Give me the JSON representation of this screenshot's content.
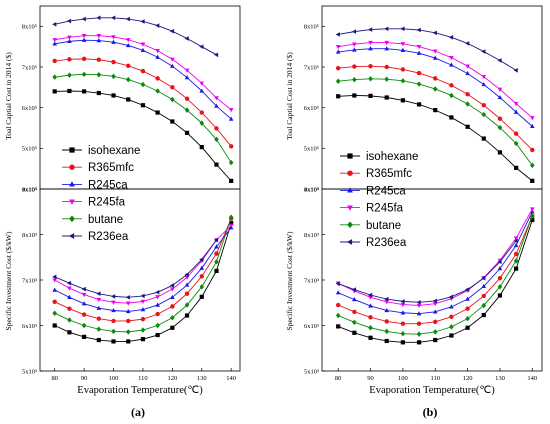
{
  "panels": [
    {
      "label": "(a)",
      "top_ylabel": "Toal Captial Cost in 2014 ($)",
      "bottom_ylabel": "Specific Investment Cost ($/kW)",
      "xlabel": "Evaporation Temperature(℃)"
    },
    {
      "label": "(b)",
      "top_ylabel": "Toal Captial Cost in 2014 ($)",
      "bottom_ylabel": "Specific Investment Cost ($/kW)",
      "xlabel": "Evaporation Temperature(℃)"
    }
  ],
  "legend": [
    {
      "name": "isohexane",
      "color": "#000000",
      "marker": "square"
    },
    {
      "name": "R365mfc",
      "color": "#e8141a",
      "marker": "circle"
    },
    {
      "name": "R245ca",
      "color": "#1a1ae8",
      "marker": "triangle-up"
    },
    {
      "name": "R245fa",
      "color": "#ee00ee",
      "marker": "triangle-down"
    },
    {
      "name": "butane",
      "color": "#0a8a0a",
      "marker": "diamond"
    },
    {
      "name": "R236ea",
      "color": "#1a1a80",
      "marker": "triangle-left"
    }
  ],
  "chart_data": [
    {
      "type": "line",
      "panel": "(a) top",
      "ylabel": "Toal Captial Cost in 2014 ($)",
      "ylim": [
        400000,
        850000
      ],
      "yticks": [
        400000,
        500000,
        600000,
        700000,
        800000
      ],
      "ytick_labels": [
        "4x10⁵",
        "5x10⁵",
        "6x10⁵",
        "7x10⁵",
        "8x10⁵"
      ],
      "xlim": [
        75,
        143
      ],
      "series": [
        {
          "name": "isohexane",
          "x": [
            80,
            85,
            90,
            95,
            100,
            105,
            110,
            115,
            120,
            125,
            130,
            135,
            140
          ],
          "values": [
            640000,
            641000,
            640000,
            636000,
            630000,
            620000,
            606000,
            588000,
            566000,
            538000,
            503000,
            460000,
            420000
          ]
        },
        {
          "name": "R365mfc",
          "x": [
            80,
            85,
            90,
            95,
            100,
            105,
            110,
            115,
            120,
            125,
            130,
            135,
            140
          ],
          "values": [
            715000,
            719000,
            720000,
            718000,
            712000,
            703000,
            690000,
            672000,
            650000,
            622000,
            588000,
            549000,
            505000
          ]
        },
        {
          "name": "R245ca",
          "x": [
            80,
            85,
            90,
            95,
            100,
            105,
            110,
            115,
            120,
            125,
            130,
            135,
            140
          ],
          "values": [
            757000,
            763000,
            766000,
            765000,
            761000,
            753000,
            741000,
            724000,
            702000,
            674000,
            641000,
            604000,
            572000
          ]
        },
        {
          "name": "R245fa",
          "x": [
            80,
            85,
            90,
            95,
            100,
            105,
            110,
            115,
            120,
            125,
            130,
            135,
            140
          ],
          "values": [
            767000,
            773000,
            777000,
            777000,
            774000,
            767000,
            756000,
            740000,
            719000,
            692000,
            660000,
            624000,
            595000
          ]
        },
        {
          "name": "butane",
          "x": [
            80,
            85,
            90,
            95,
            100,
            105,
            110,
            115,
            120,
            125,
            130,
            135,
            140
          ],
          "values": [
            675000,
            680000,
            682000,
            681000,
            677000,
            669000,
            657000,
            641000,
            620000,
            594000,
            562000,
            522000,
            465000
          ]
        },
        {
          "name": "R236ea",
          "x": [
            80,
            85,
            90,
            95,
            100,
            105,
            110,
            115,
            120,
            125,
            130,
            135
          ],
          "values": [
            805000,
            813000,
            818000,
            821000,
            821000,
            818000,
            812000,
            802000,
            788000,
            770000,
            750000,
            730000
          ]
        }
      ]
    },
    {
      "type": "line",
      "panel": "(a) bottom",
      "ylabel": "Specific Investment Cost ($/kW)",
      "ylim": [
        5000,
        9000
      ],
      "yticks": [
        5000,
        6000,
        7000,
        8000,
        9000
      ],
      "ytick_labels": [
        "5x10³",
        "6x10³",
        "7x10³",
        "8x10³",
        "9x10³"
      ],
      "xlim": [
        75,
        143
      ],
      "xticks": [
        80,
        90,
        100,
        110,
        120,
        130,
        140
      ],
      "xlabel": "Evaporation Temperature(℃)",
      "series": [
        {
          "name": "isohexane",
          "x": [
            80,
            85,
            90,
            95,
            100,
            105,
            110,
            115,
            120,
            125,
            130,
            135,
            140
          ],
          "values": [
            6000,
            5850,
            5750,
            5680,
            5650,
            5650,
            5700,
            5790,
            5950,
            6220,
            6630,
            7200,
            8250
          ]
        },
        {
          "name": "R365mfc",
          "x": [
            80,
            85,
            90,
            95,
            100,
            105,
            110,
            115,
            120,
            125,
            130,
            135,
            140
          ],
          "values": [
            6520,
            6370,
            6240,
            6150,
            6100,
            6100,
            6140,
            6250,
            6420,
            6700,
            7080,
            7580,
            8350
          ]
        },
        {
          "name": "R245ca",
          "x": [
            80,
            85,
            90,
            95,
            100,
            105,
            110,
            115,
            120,
            125,
            130,
            135,
            140
          ],
          "values": [
            6780,
            6620,
            6480,
            6380,
            6330,
            6310,
            6350,
            6450,
            6620,
            6890,
            7260,
            7730,
            8150
          ]
        },
        {
          "name": "R245fa",
          "x": [
            80,
            85,
            90,
            95,
            100,
            105,
            110,
            115,
            120,
            125,
            130,
            135,
            140
          ],
          "values": [
            7000,
            6820,
            6680,
            6570,
            6510,
            6490,
            6530,
            6630,
            6800,
            7060,
            7420,
            7880,
            8200
          ]
        },
        {
          "name": "butane",
          "x": [
            80,
            85,
            90,
            95,
            100,
            105,
            110,
            115,
            120,
            125,
            130,
            135,
            140
          ],
          "values": [
            6270,
            6120,
            6000,
            5920,
            5870,
            5860,
            5900,
            6000,
            6170,
            6450,
            6850,
            7400,
            8380
          ]
        },
        {
          "name": "R236ea",
          "x": [
            80,
            85,
            90,
            95,
            100,
            105,
            110,
            115,
            120,
            125,
            130,
            135
          ],
          "values": [
            7070,
            6930,
            6800,
            6700,
            6640,
            6620,
            6650,
            6730,
            6880,
            7120,
            7450,
            7880
          ]
        }
      ]
    },
    {
      "type": "line",
      "panel": "(b) top",
      "ylabel": "Toal Captial Cost in 2014 ($)",
      "ylim": [
        400000,
        850000
      ],
      "yticks": [
        400000,
        500000,
        600000,
        700000,
        800000
      ],
      "ytick_labels": [
        "4x10⁵",
        "5x10⁵",
        "6x10⁵",
        "7x10⁵",
        "8x10⁵"
      ],
      "xlim": [
        75,
        143
      ],
      "series": [
        {
          "name": "isohexane",
          "x": [
            80,
            85,
            90,
            95,
            100,
            105,
            110,
            115,
            120,
            125,
            130,
            135,
            140
          ],
          "values": [
            628000,
            630000,
            629000,
            625000,
            618000,
            608000,
            594000,
            576000,
            553000,
            524000,
            490000,
            452000,
            420000
          ]
        },
        {
          "name": "R365mfc",
          "x": [
            80,
            85,
            90,
            95,
            100,
            105,
            110,
            115,
            120,
            125,
            130,
            135,
            140
          ],
          "values": [
            697000,
            701000,
            702000,
            700000,
            694000,
            685000,
            672000,
            655000,
            633000,
            606000,
            573000,
            536000,
            496000
          ]
        },
        {
          "name": "R245ca",
          "x": [
            80,
            85,
            90,
            95,
            100,
            105,
            110,
            115,
            120,
            125,
            130,
            135,
            140
          ],
          "values": [
            737000,
            742000,
            745000,
            745000,
            741000,
            734000,
            722000,
            705000,
            684000,
            657000,
            625000,
            589000,
            554000
          ]
        },
        {
          "name": "R245fa",
          "x": [
            80,
            85,
            90,
            95,
            100,
            105,
            110,
            115,
            120,
            125,
            130,
            135,
            140
          ],
          "values": [
            750000,
            756000,
            760000,
            760000,
            757000,
            750000,
            739000,
            723000,
            702000,
            676000,
            645000,
            610000,
            575000
          ]
        },
        {
          "name": "butane",
          "x": [
            80,
            85,
            90,
            95,
            100,
            105,
            110,
            115,
            120,
            125,
            130,
            135,
            140
          ],
          "values": [
            665000,
            669000,
            671000,
            670000,
            666000,
            658000,
            646000,
            630000,
            609000,
            583000,
            551000,
            512000,
            458000
          ]
        },
        {
          "name": "R236ea",
          "x": [
            80,
            85,
            90,
            95,
            100,
            105,
            110,
            115,
            120,
            125,
            130,
            135
          ],
          "values": [
            780000,
            787000,
            792000,
            794000,
            794000,
            791000,
            784000,
            773000,
            758000,
            738000,
            716000,
            692000
          ]
        }
      ]
    },
    {
      "type": "line",
      "panel": "(b) bottom",
      "ylabel": "Specific Investment Cost ($/kW)",
      "ylim": [
        5000,
        9000
      ],
      "yticks": [
        5000,
        6000,
        7000,
        8000,
        9000
      ],
      "ytick_labels": [
        "5x10³",
        "6x10³",
        "7x10³",
        "8x10³",
        "9x10³"
      ],
      "xlim": [
        75,
        143
      ],
      "xticks": [
        80,
        90,
        100,
        110,
        120,
        130,
        140
      ],
      "xlabel": "Evaporation Temperature(℃)",
      "series": [
        {
          "name": "isohexane",
          "x": [
            80,
            85,
            90,
            95,
            100,
            105,
            110,
            115,
            120,
            125,
            130,
            135,
            140
          ],
          "values": [
            5980,
            5840,
            5730,
            5660,
            5630,
            5630,
            5680,
            5780,
            5950,
            6230,
            6660,
            7250,
            8320
          ]
        },
        {
          "name": "R365mfc",
          "x": [
            80,
            85,
            90,
            95,
            100,
            105,
            110,
            115,
            120,
            125,
            130,
            135,
            140
          ],
          "values": [
            6450,
            6300,
            6180,
            6090,
            6040,
            6040,
            6080,
            6190,
            6370,
            6650,
            7040,
            7570,
            8400
          ]
        },
        {
          "name": "R245ca",
          "x": [
            80,
            85,
            90,
            95,
            100,
            105,
            110,
            115,
            120,
            125,
            130,
            135,
            140
          ],
          "values": [
            6720,
            6570,
            6430,
            6330,
            6280,
            6260,
            6300,
            6410,
            6580,
            6860,
            7250,
            7760,
            8500
          ]
        },
        {
          "name": "R245fa",
          "x": [
            80,
            85,
            90,
            95,
            100,
            105,
            110,
            115,
            120,
            125,
            130,
            135,
            140
          ],
          "values": [
            6930,
            6760,
            6620,
            6520,
            6460,
            6440,
            6480,
            6590,
            6770,
            7050,
            7430,
            7920,
            8560
          ]
        },
        {
          "name": "butane",
          "x": [
            80,
            85,
            90,
            95,
            100,
            105,
            110,
            115,
            120,
            125,
            130,
            135,
            140
          ],
          "values": [
            6220,
            6070,
            5950,
            5870,
            5820,
            5810,
            5860,
            5970,
            6150,
            6440,
            6850,
            7420,
            8420
          ]
        },
        {
          "name": "R236ea",
          "x": [
            80,
            85,
            90,
            95,
            100,
            105,
            110,
            115,
            120,
            125,
            130,
            135
          ],
          "values": [
            6920,
            6790,
            6670,
            6580,
            6530,
            6510,
            6540,
            6630,
            6790,
            7040,
            7400,
            7860
          ]
        }
      ]
    }
  ]
}
